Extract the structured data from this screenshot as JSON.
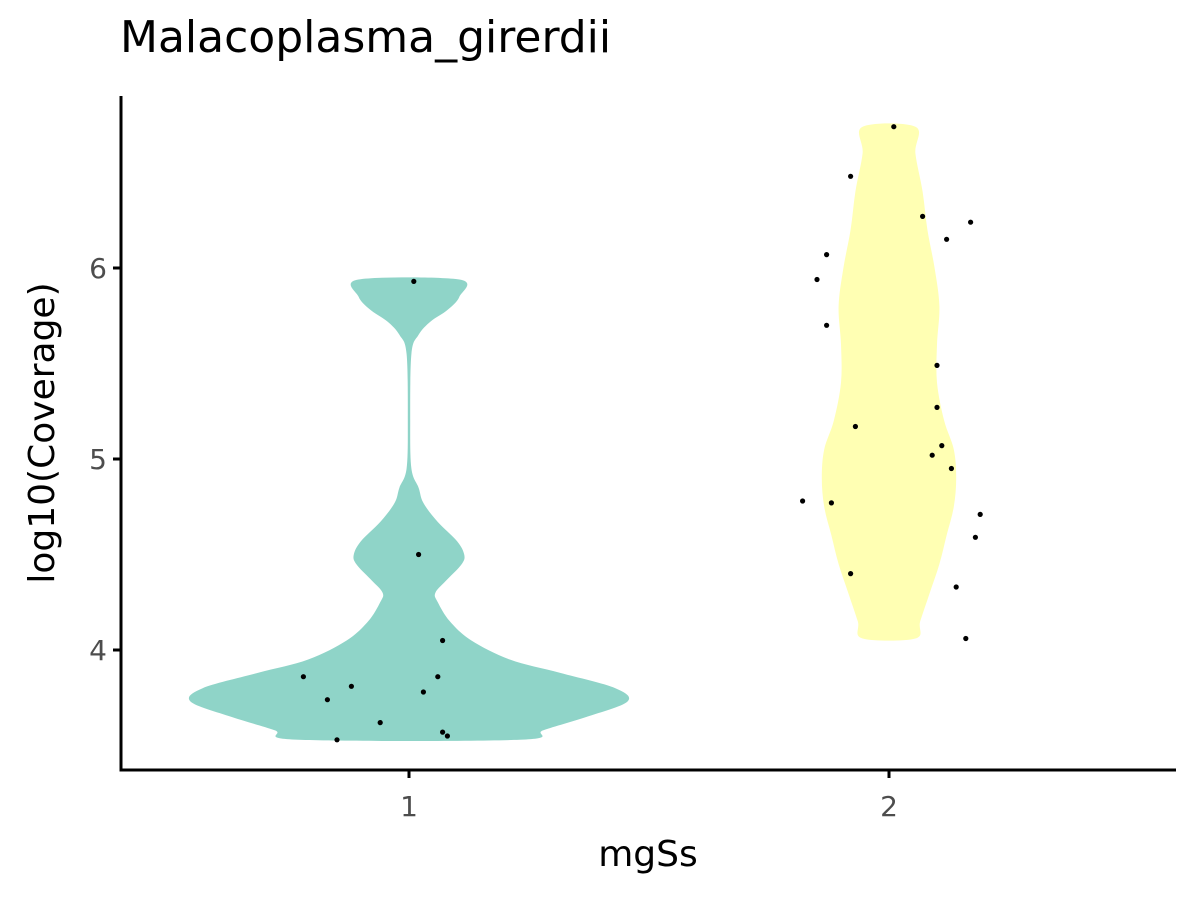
{
  "chart_data": {
    "type": "violin",
    "title": "Malacoplasma_girerdii",
    "xlabel": "mgSs",
    "ylabel": "log10(Coverage)",
    "categories": [
      "1",
      "2"
    ],
    "ylim": [
      3.38,
      6.9
    ],
    "y_ticks": [
      4,
      5,
      6
    ],
    "grid": false,
    "legend": "none",
    "colors": [
      "#8fd4c8",
      "#ffffb3"
    ],
    "series": [
      {
        "category": "1",
        "range": [
          3.53,
          5.94
        ],
        "density": [
          [
            3.53,
            0.46
          ],
          [
            3.58,
            0.56
          ],
          [
            3.65,
            0.74
          ],
          [
            3.73,
            0.91
          ],
          [
            3.8,
            0.86
          ],
          [
            3.88,
            0.63
          ],
          [
            3.95,
            0.42
          ],
          [
            4.05,
            0.26
          ],
          [
            4.15,
            0.17
          ],
          [
            4.25,
            0.12
          ],
          [
            4.3,
            0.11
          ],
          [
            4.37,
            0.16
          ],
          [
            4.45,
            0.22
          ],
          [
            4.5,
            0.23
          ],
          [
            4.57,
            0.2
          ],
          [
            4.67,
            0.12
          ],
          [
            4.77,
            0.06
          ],
          [
            4.85,
            0.04
          ],
          [
            4.95,
            0.01
          ],
          [
            5.2,
            0.005
          ],
          [
            5.55,
            0.01
          ],
          [
            5.65,
            0.04
          ],
          [
            5.72,
            0.09
          ],
          [
            5.78,
            0.16
          ],
          [
            5.85,
            0.21
          ],
          [
            5.94,
            0.21
          ]
        ],
        "points": [
          {
            "x": -0.15,
            "y": 3.53
          },
          {
            "x": -0.22,
            "y": 3.86
          },
          {
            "x": -0.17,
            "y": 3.74
          },
          {
            "x": -0.12,
            "y": 3.81
          },
          {
            "x": -0.06,
            "y": 3.62
          },
          {
            "x": 0.03,
            "y": 3.78
          },
          {
            "x": 0.06,
            "y": 3.86
          },
          {
            "x": 0.07,
            "y": 4.05
          },
          {
            "x": 0.07,
            "y": 3.57
          },
          {
            "x": 0.08,
            "y": 3.55
          },
          {
            "x": 0.02,
            "y": 4.5
          },
          {
            "x": 0.01,
            "y": 5.93
          }
        ]
      },
      {
        "category": "2",
        "range": [
          4.06,
          6.74
        ],
        "density": [
          [
            4.06,
            0.11
          ],
          [
            4.15,
            0.13
          ],
          [
            4.3,
            0.17
          ],
          [
            4.45,
            0.21
          ],
          [
            4.6,
            0.24
          ],
          [
            4.75,
            0.27
          ],
          [
            4.9,
            0.28
          ],
          [
            5.05,
            0.27
          ],
          [
            5.2,
            0.23
          ],
          [
            5.4,
            0.2
          ],
          [
            5.6,
            0.2
          ],
          [
            5.8,
            0.21
          ],
          [
            6.0,
            0.19
          ],
          [
            6.2,
            0.16
          ],
          [
            6.4,
            0.14
          ],
          [
            6.6,
            0.11
          ],
          [
            6.74,
            0.11
          ]
        ],
        "points": [
          {
            "x": 0.01,
            "y": 6.74
          },
          {
            "x": -0.08,
            "y": 6.48
          },
          {
            "x": 0.07,
            "y": 6.27
          },
          {
            "x": 0.17,
            "y": 6.24
          },
          {
            "x": 0.12,
            "y": 6.15
          },
          {
            "x": -0.13,
            "y": 6.07
          },
          {
            "x": -0.15,
            "y": 5.94
          },
          {
            "x": -0.13,
            "y": 5.7
          },
          {
            "x": 0.1,
            "y": 5.49
          },
          {
            "x": 0.1,
            "y": 5.27
          },
          {
            "x": -0.07,
            "y": 5.17
          },
          {
            "x": 0.11,
            "y": 5.07
          },
          {
            "x": 0.09,
            "y": 5.02
          },
          {
            "x": 0.13,
            "y": 4.95
          },
          {
            "x": -0.18,
            "y": 4.78
          },
          {
            "x": -0.12,
            "y": 4.77
          },
          {
            "x": 0.19,
            "y": 4.71
          },
          {
            "x": 0.18,
            "y": 4.59
          },
          {
            "x": -0.08,
            "y": 4.4
          },
          {
            "x": 0.14,
            "y": 4.33
          },
          {
            "x": 0.16,
            "y": 4.06
          }
        ]
      }
    ]
  }
}
